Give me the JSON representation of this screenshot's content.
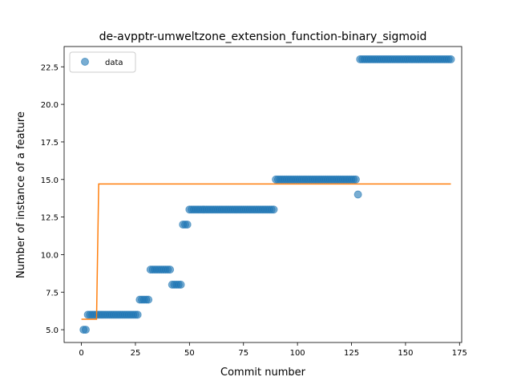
{
  "chart_data": {
    "type": "scatter",
    "title": "de-avpptr-umweltzone_extension_function-binary_sigmoid",
    "xlabel": "Commit number",
    "ylabel": "Number of instance of a feature",
    "xlim": [
      -8,
      176
    ],
    "ylim": [
      4.15,
      23.85
    ],
    "xticks": [
      0,
      25,
      50,
      75,
      100,
      125,
      150,
      175
    ],
    "yticks": [
      5.0,
      7.5,
      10.0,
      12.5,
      15.0,
      17.5,
      20.0,
      22.5
    ],
    "ytick_labels": [
      "5.0",
      "7.5",
      "10.0",
      "12.5",
      "15.0",
      "17.5",
      "20.0",
      "22.5"
    ],
    "grid": false,
    "legend_position": "top-left",
    "series": [
      {
        "name": "data",
        "kind": "scatter",
        "color": "#1f77b4",
        "segments": [
          {
            "from": 1,
            "to": 2,
            "y": 5
          },
          {
            "from": 3,
            "to": 26,
            "y": 6
          },
          {
            "from": 27,
            "to": 31,
            "y": 7
          },
          {
            "from": 32,
            "to": 41,
            "y": 9
          },
          {
            "from": 42,
            "to": 46,
            "y": 8
          },
          {
            "from": 47,
            "to": 49,
            "y": 12
          },
          {
            "from": 50,
            "to": 89,
            "y": 13
          },
          {
            "from": 90,
            "to": 127,
            "y": 15
          },
          {
            "from": 128,
            "to": 128,
            "y": 14
          },
          {
            "from": 129,
            "to": 171,
            "y": 23
          }
        ]
      },
      {
        "kind": "line",
        "color": "#ff7f0e",
        "x": [
          0,
          7,
          8,
          171
        ],
        "y": [
          5.7,
          5.7,
          14.7,
          14.7
        ]
      }
    ]
  }
}
